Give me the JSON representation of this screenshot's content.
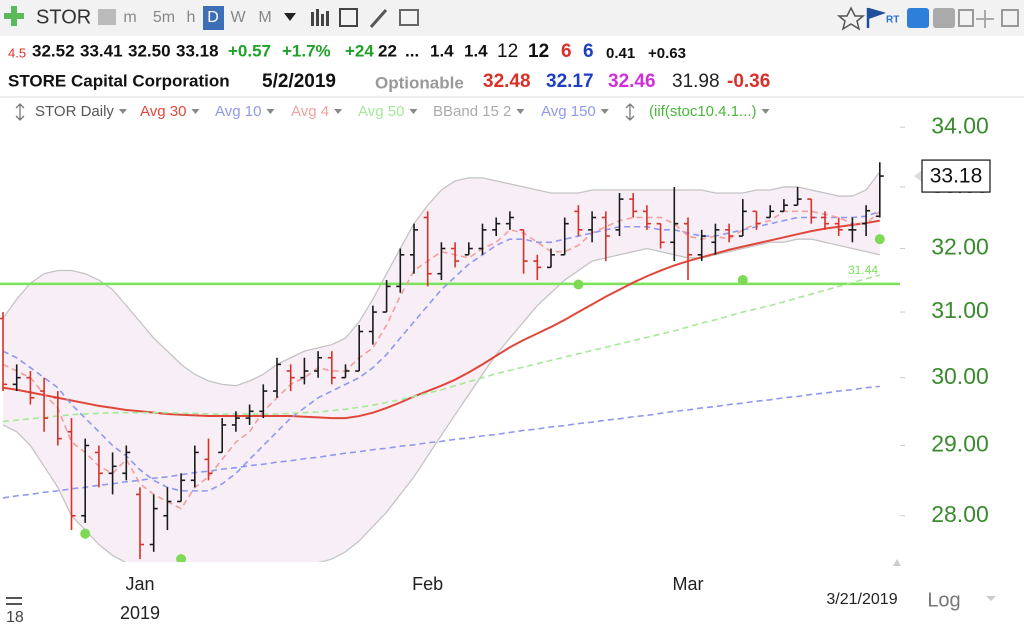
{
  "toolbar": {
    "symbol": "STOR",
    "intervals": [
      "m",
      "5m",
      "h",
      "D",
      "W",
      "M"
    ]
  },
  "quote_bar": [
    "4.5",
    "32.52",
    "33.41",
    "32.50",
    "33.18",
    "+0.57",
    "+1.7%",
    "+24",
    "22",
    "...",
    "1.4",
    "1.4",
    "12",
    "12",
    "6",
    "6",
    "0.41",
    "+0.63"
  ],
  "info_bar": [
    "STORE Capital Corporation",
    "5/2/2019",
    "Optionable",
    "32.48",
    "32.17",
    "32.46",
    "31.98",
    "-0.36"
  ],
  "scroll_label": "18",
  "chart_data": {
    "type": "ohlc",
    "categories": [
      null,
      null,
      null,
      null,
      null,
      null,
      null,
      null,
      null,
      null,
      "Jan",
      null,
      null,
      null,
      null,
      null,
      null,
      null,
      null,
      null,
      null,
      null,
      null,
      null,
      null,
      null,
      null,
      null,
      null,
      null,
      null,
      "Feb",
      null,
      null,
      null,
      null,
      null,
      null,
      null,
      null,
      null,
      null,
      null,
      null,
      null,
      null,
      null,
      null,
      null,
      null,
      "Mar",
      null,
      null,
      null,
      null,
      null,
      null,
      null,
      null,
      null,
      null,
      null,
      null,
      null,
      null
    ],
    "year_label": "2019",
    "last_date": "3/21/2019",
    "scale_label": "Log",
    "log_scale": true,
    "ylim": [
      27.36,
      34.5
    ],
    "yticks": [
      {
        "value": 28,
        "label": "28.00"
      },
      {
        "value": 29,
        "label": "29.00"
      },
      {
        "value": 30,
        "label": "30.00"
      },
      {
        "value": 31,
        "label": "31.00"
      },
      {
        "value": 32,
        "label": "32.00"
      },
      {
        "value": 33,
        "label": "33.00"
      },
      {
        "value": 34,
        "label": "34.00"
      }
    ],
    "tick_color": "#3a8a2e",
    "last_price": 33.18,
    "ohlc": {
      "name": "STOR Daily",
      "up_color": "#1a1a1a",
      "down_color": "#d8302a",
      "open": [
        30.9,
        29.9,
        30.0,
        29.8,
        29.7,
        29.2,
        28.0,
        28.9,
        28.6,
        28.6,
        28.3,
        27.6,
        28.0,
        28.2,
        28.5,
        28.8,
        28.9,
        29.3,
        29.4,
        29.5,
        29.8,
        30.1,
        30.0,
        30.1,
        30.3,
        30.0,
        30.1,
        30.7,
        31.0,
        31.4,
        31.9,
        32.5,
        31.6,
        32.0,
        31.9,
        32.0,
        32.3,
        32.4,
        32.3,
        31.8,
        31.7,
        31.9,
        32.6,
        32.3,
        32.5,
        32.3,
        32.8,
        32.6,
        32.4,
        32.1,
        32.4,
        31.9,
        32.1,
        32.3,
        32.2,
        32.6,
        32.5,
        32.6,
        32.7,
        32.8,
        32.5,
        32.4,
        32.3,
        32.4,
        32.52
      ],
      "high": [
        31.0,
        30.2,
        30.1,
        30.0,
        29.8,
        29.4,
        29.1,
        29.0,
        28.9,
        29.0,
        28.4,
        28.3,
        28.4,
        28.6,
        29.0,
        29.1,
        29.4,
        29.5,
        29.6,
        29.9,
        30.3,
        30.2,
        30.3,
        30.4,
        30.4,
        30.2,
        30.8,
        31.1,
        31.5,
        32.0,
        32.4,
        32.6,
        32.1,
        32.1,
        32.1,
        32.4,
        32.5,
        32.6,
        32.3,
        31.9,
        32.0,
        32.5,
        32.7,
        32.6,
        32.6,
        32.9,
        32.9,
        32.7,
        32.4,
        33.0,
        32.5,
        32.3,
        32.4,
        32.4,
        32.8,
        32.6,
        32.7,
        32.8,
        33.0,
        32.8,
        32.6,
        32.5,
        32.5,
        32.7,
        33.41
      ],
      "low": [
        29.8,
        29.8,
        29.6,
        29.2,
        29.0,
        27.8,
        27.9,
        28.4,
        28.3,
        28.5,
        27.4,
        27.5,
        27.8,
        28.2,
        28.4,
        28.5,
        28.9,
        29.2,
        29.3,
        29.4,
        29.7,
        29.8,
        29.9,
        30.0,
        29.9,
        30.0,
        30.1,
        30.5,
        31.0,
        31.3,
        31.6,
        31.4,
        31.5,
        31.7,
        31.9,
        31.9,
        32.2,
        32.3,
        31.6,
        31.5,
        31.7,
        31.9,
        32.2,
        32.1,
        31.8,
        32.2,
        32.5,
        32.3,
        32.0,
        31.8,
        31.5,
        31.8,
        31.9,
        32.1,
        32.2,
        32.3,
        32.5,
        32.6,
        32.7,
        32.4,
        32.3,
        32.2,
        32.1,
        32.2,
        32.5
      ],
      "close": [
        29.9,
        30.0,
        29.7,
        29.4,
        29.1,
        28.0,
        29.0,
        28.6,
        28.7,
        28.9,
        27.6,
        28.1,
        28.2,
        28.5,
        28.9,
        28.6,
        29.3,
        29.4,
        29.5,
        29.8,
        30.2,
        30.0,
        30.1,
        30.3,
        30.0,
        30.1,
        30.7,
        31.0,
        31.4,
        31.9,
        32.3,
        31.6,
        32.0,
        31.8,
        32.0,
        32.3,
        32.4,
        32.5,
        31.8,
        31.7,
        31.9,
        32.4,
        32.3,
        32.5,
        32.2,
        32.8,
        32.6,
        32.4,
        32.1,
        32.4,
        31.9,
        32.2,
        32.3,
        32.2,
        32.6,
        32.4,
        32.6,
        32.7,
        32.8,
        32.5,
        32.4,
        32.3,
        32.3,
        32.61,
        33.18
      ]
    },
    "lines": [
      {
        "name": "Avg 30",
        "color": "#e0473a",
        "dashed": false,
        "values": [
          29.85,
          29.82,
          29.78,
          29.74,
          29.7,
          29.66,
          29.62,
          29.58,
          29.55,
          29.52,
          29.5,
          29.48,
          29.46,
          29.45,
          29.44,
          29.43,
          29.43,
          29.43,
          29.43,
          29.43,
          29.43,
          29.43,
          29.42,
          29.41,
          29.4,
          29.4,
          29.43,
          29.48,
          29.55,
          29.63,
          29.72,
          29.8,
          29.88,
          29.97,
          30.08,
          30.2,
          30.33,
          30.46,
          30.57,
          30.67,
          30.77,
          30.88,
          31.0,
          31.12,
          31.24,
          31.35,
          31.46,
          31.56,
          31.65,
          31.73,
          31.8,
          31.86,
          31.92,
          31.98,
          32.03,
          32.08,
          32.13,
          32.18,
          32.23,
          32.28,
          32.32,
          32.35,
          32.38,
          32.41,
          32.45
        ]
      },
      {
        "name": "Avg 10",
        "color": "#8f98ee",
        "dashed": true,
        "values": [
          30.4,
          30.3,
          30.15,
          30.0,
          29.85,
          29.6,
          29.4,
          29.2,
          29.0,
          28.85,
          28.65,
          28.5,
          28.4,
          28.35,
          28.35,
          28.35,
          28.45,
          28.6,
          28.8,
          29.0,
          29.2,
          29.4,
          29.55,
          29.7,
          29.8,
          29.9,
          30.0,
          30.15,
          30.35,
          30.6,
          30.85,
          31.1,
          31.35,
          31.55,
          31.75,
          31.9,
          32.05,
          32.15,
          32.15,
          32.1,
          32.1,
          32.15,
          32.2,
          32.25,
          32.3,
          32.35,
          32.35,
          32.35,
          32.3,
          32.3,
          32.25,
          32.2,
          32.2,
          32.25,
          32.3,
          32.35,
          32.4,
          32.45,
          32.5,
          32.5,
          32.5,
          32.5,
          32.5,
          32.52,
          32.6
        ]
      },
      {
        "name": "Avg 4",
        "color": "#f0a0a0",
        "dashed": true,
        "values": [
          30.2,
          30.1,
          30.0,
          29.75,
          29.55,
          29.05,
          28.9,
          28.7,
          28.6,
          28.8,
          28.45,
          28.3,
          28.2,
          28.1,
          28.4,
          28.55,
          28.8,
          29.05,
          29.2,
          29.5,
          29.7,
          29.9,
          30.0,
          30.15,
          30.1,
          30.1,
          30.3,
          30.45,
          30.8,
          31.25,
          31.65,
          31.8,
          31.95,
          31.9,
          31.85,
          32.0,
          32.1,
          32.3,
          32.25,
          32.1,
          31.95,
          31.95,
          32.05,
          32.25,
          32.35,
          32.45,
          32.5,
          32.5,
          32.5,
          32.4,
          32.2,
          32.15,
          32.2,
          32.15,
          32.3,
          32.4,
          32.45,
          32.6,
          32.6,
          32.6,
          32.55,
          32.5,
          32.4,
          32.4,
          32.6
        ]
      },
      {
        "name": "Avg 50",
        "color": "#a6e89a",
        "dashed": true,
        "values": [
          29.35,
          29.37,
          29.39,
          29.41,
          29.43,
          29.45,
          29.46,
          29.47,
          29.48,
          29.48,
          29.48,
          29.48,
          29.48,
          29.47,
          29.47,
          29.46,
          29.46,
          29.46,
          29.46,
          29.46,
          29.46,
          29.47,
          29.48,
          29.49,
          29.51,
          29.53,
          29.56,
          29.59,
          29.63,
          29.67,
          29.72,
          29.77,
          29.82,
          29.88,
          29.94,
          30.0,
          30.06,
          30.11,
          30.16,
          30.21,
          30.26,
          30.31,
          30.36,
          30.41,
          30.46,
          30.51,
          30.56,
          30.61,
          30.66,
          30.71,
          30.77,
          30.83,
          30.88,
          30.94,
          31.0,
          31.05,
          31.1,
          31.16,
          31.22,
          31.28,
          31.34,
          31.4,
          31.46,
          31.52,
          31.58
        ]
      },
      {
        "name": "Avg 150",
        "color": "#8f98ee",
        "dashed": true,
        "values": [
          28.25,
          28.28,
          28.3,
          28.33,
          28.35,
          28.38,
          28.4,
          28.43,
          28.45,
          28.48,
          28.5,
          28.53,
          28.55,
          28.58,
          28.61,
          28.63,
          28.66,
          28.68,
          28.71,
          28.73,
          28.76,
          28.78,
          28.81,
          28.83,
          28.86,
          28.89,
          28.91,
          28.94,
          28.96,
          28.99,
          29.01,
          29.04,
          29.06,
          29.09,
          29.11,
          29.14,
          29.16,
          29.19,
          29.22,
          29.24,
          29.27,
          29.29,
          29.32,
          29.34,
          29.37,
          29.39,
          29.42,
          29.44,
          29.47,
          29.5,
          29.52,
          29.55,
          29.57,
          29.6,
          29.62,
          29.65,
          29.67,
          29.7,
          29.72,
          29.75,
          29.77,
          29.8,
          29.82,
          29.85,
          29.87
        ]
      }
    ],
    "band": {
      "name": "BBand 15 2",
      "color": "#c4c4c4",
      "fill": "#f7eff5",
      "upper": [
        30.9,
        31.2,
        31.45,
        31.6,
        31.65,
        31.65,
        31.6,
        31.5,
        31.35,
        31.1,
        30.85,
        30.6,
        30.4,
        30.2,
        30.05,
        29.95,
        29.9,
        29.88,
        29.95,
        30.05,
        30.2,
        30.3,
        30.4,
        30.45,
        30.5,
        30.6,
        30.85,
        31.2,
        31.6,
        32.0,
        32.4,
        32.7,
        32.95,
        33.1,
        33.15,
        33.15,
        33.1,
        33.05,
        33.0,
        32.95,
        32.9,
        32.9,
        32.9,
        32.95,
        32.95,
        32.95,
        32.95,
        32.95,
        32.95,
        32.95,
        32.95,
        32.95,
        32.9,
        32.9,
        32.9,
        32.95,
        32.95,
        33.0,
        33.0,
        32.95,
        32.9,
        32.85,
        32.85,
        32.95,
        33.25
      ],
      "lower": [
        29.3,
        29.2,
        29.0,
        28.7,
        28.4,
        28.0,
        27.8,
        27.6,
        27.45,
        27.35,
        27.2,
        27.1,
        27.1,
        27.1,
        27.15,
        27.2,
        27.25,
        27.3,
        27.3,
        27.3,
        27.3,
        27.3,
        27.3,
        27.35,
        27.4,
        27.5,
        27.65,
        27.85,
        28.05,
        28.3,
        28.55,
        28.85,
        29.15,
        29.45,
        29.75,
        30.05,
        30.35,
        30.6,
        30.85,
        31.1,
        31.3,
        31.5,
        31.65,
        31.8,
        31.85,
        31.9,
        31.95,
        32.0,
        31.95,
        31.9,
        31.85,
        31.85,
        31.9,
        31.95,
        32.0,
        32.05,
        32.1,
        32.1,
        32.15,
        32.15,
        32.1,
        32.05,
        32.0,
        31.95,
        31.9
      ]
    },
    "signal": {
      "name": "(iif(stoc10.4.1...)",
      "color": "#7ed957",
      "values": [
        null,
        null,
        null,
        null,
        null,
        null,
        27.75,
        null,
        null,
        null,
        null,
        null,
        null,
        27.4,
        null,
        null,
        null,
        null,
        null,
        null,
        null,
        null,
        null,
        null,
        null,
        null,
        null,
        null,
        null,
        null,
        null,
        null,
        null,
        null,
        null,
        null,
        null,
        null,
        null,
        null,
        null,
        null,
        31.43,
        null,
        null,
        null,
        null,
        null,
        null,
        null,
        null,
        null,
        null,
        null,
        31.5,
        null,
        null,
        null,
        null,
        null,
        null,
        null,
        null,
        null,
        32.15
      ]
    },
    "hline": 31.44,
    "hline_color": "#7be35a"
  }
}
